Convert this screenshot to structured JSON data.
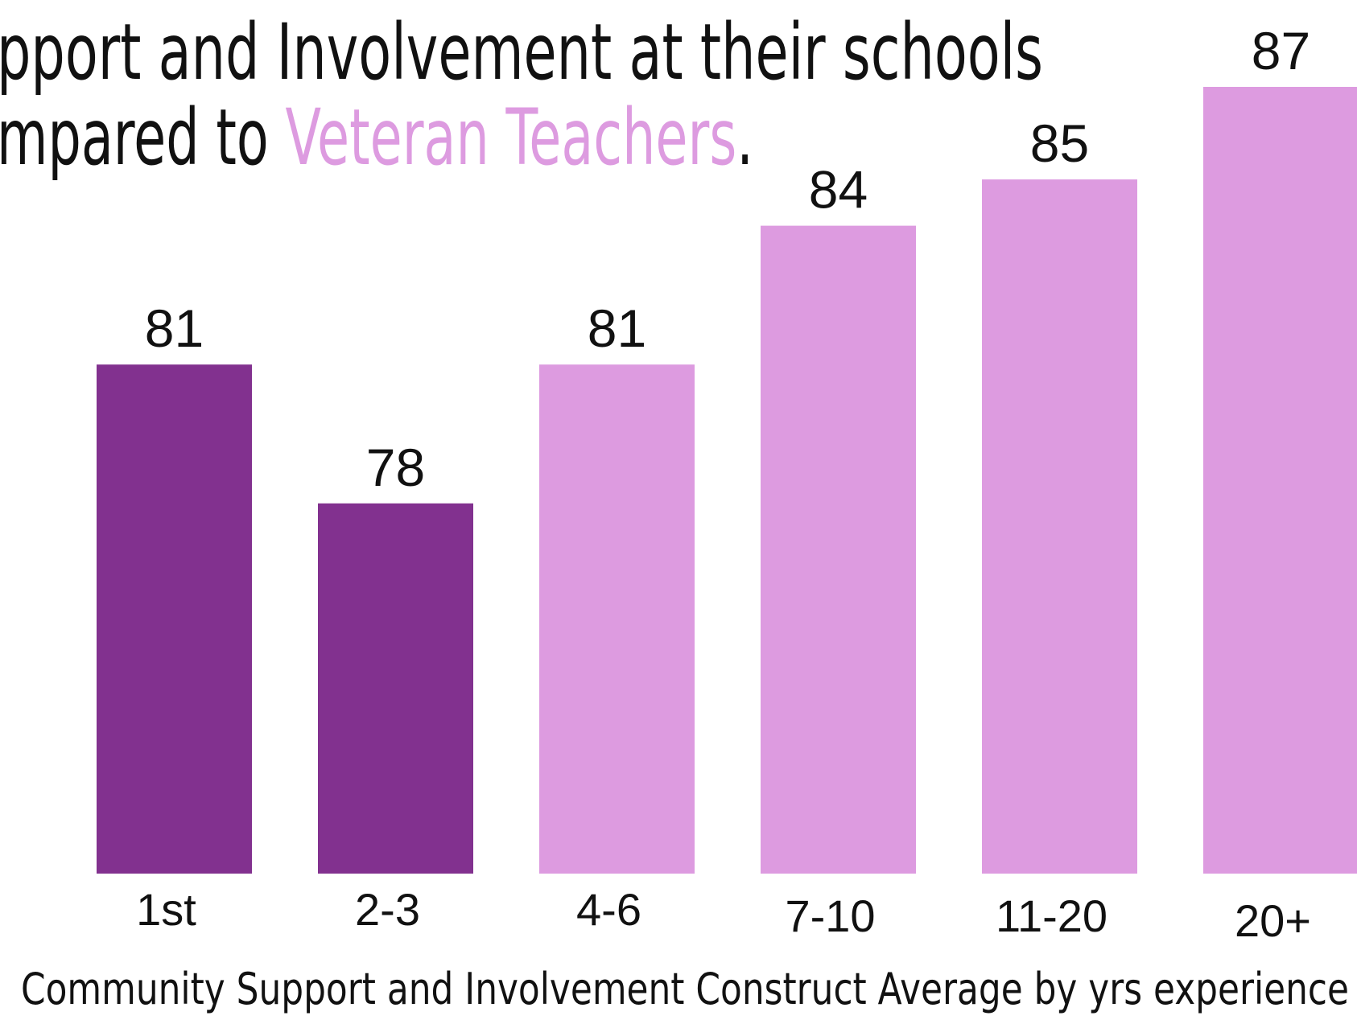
{
  "chart_data": {
    "type": "bar",
    "title_lines": [
      "pport and Involvement  at their schools",
      [
        "mpared to ",
        "Veteran Teachers",
        "."
      ]
    ],
    "categories": [
      "1st",
      "2-3",
      "4-6",
      "7-10",
      "11-20",
      "20+"
    ],
    "values": [
      81,
      78,
      81,
      84,
      85,
      87
    ],
    "groups": [
      "new",
      "new",
      "veteran",
      "veteran",
      "veteran",
      "veteran"
    ],
    "xlabel": "Community Support and Involvement Construct  Average by yrs experience",
    "ylabel": "",
    "ylim": [
      70,
      87
    ],
    "grid": false,
    "colors": {
      "new": "#82318f",
      "veteran": "#dd9be0",
      "text": "#111111"
    }
  }
}
